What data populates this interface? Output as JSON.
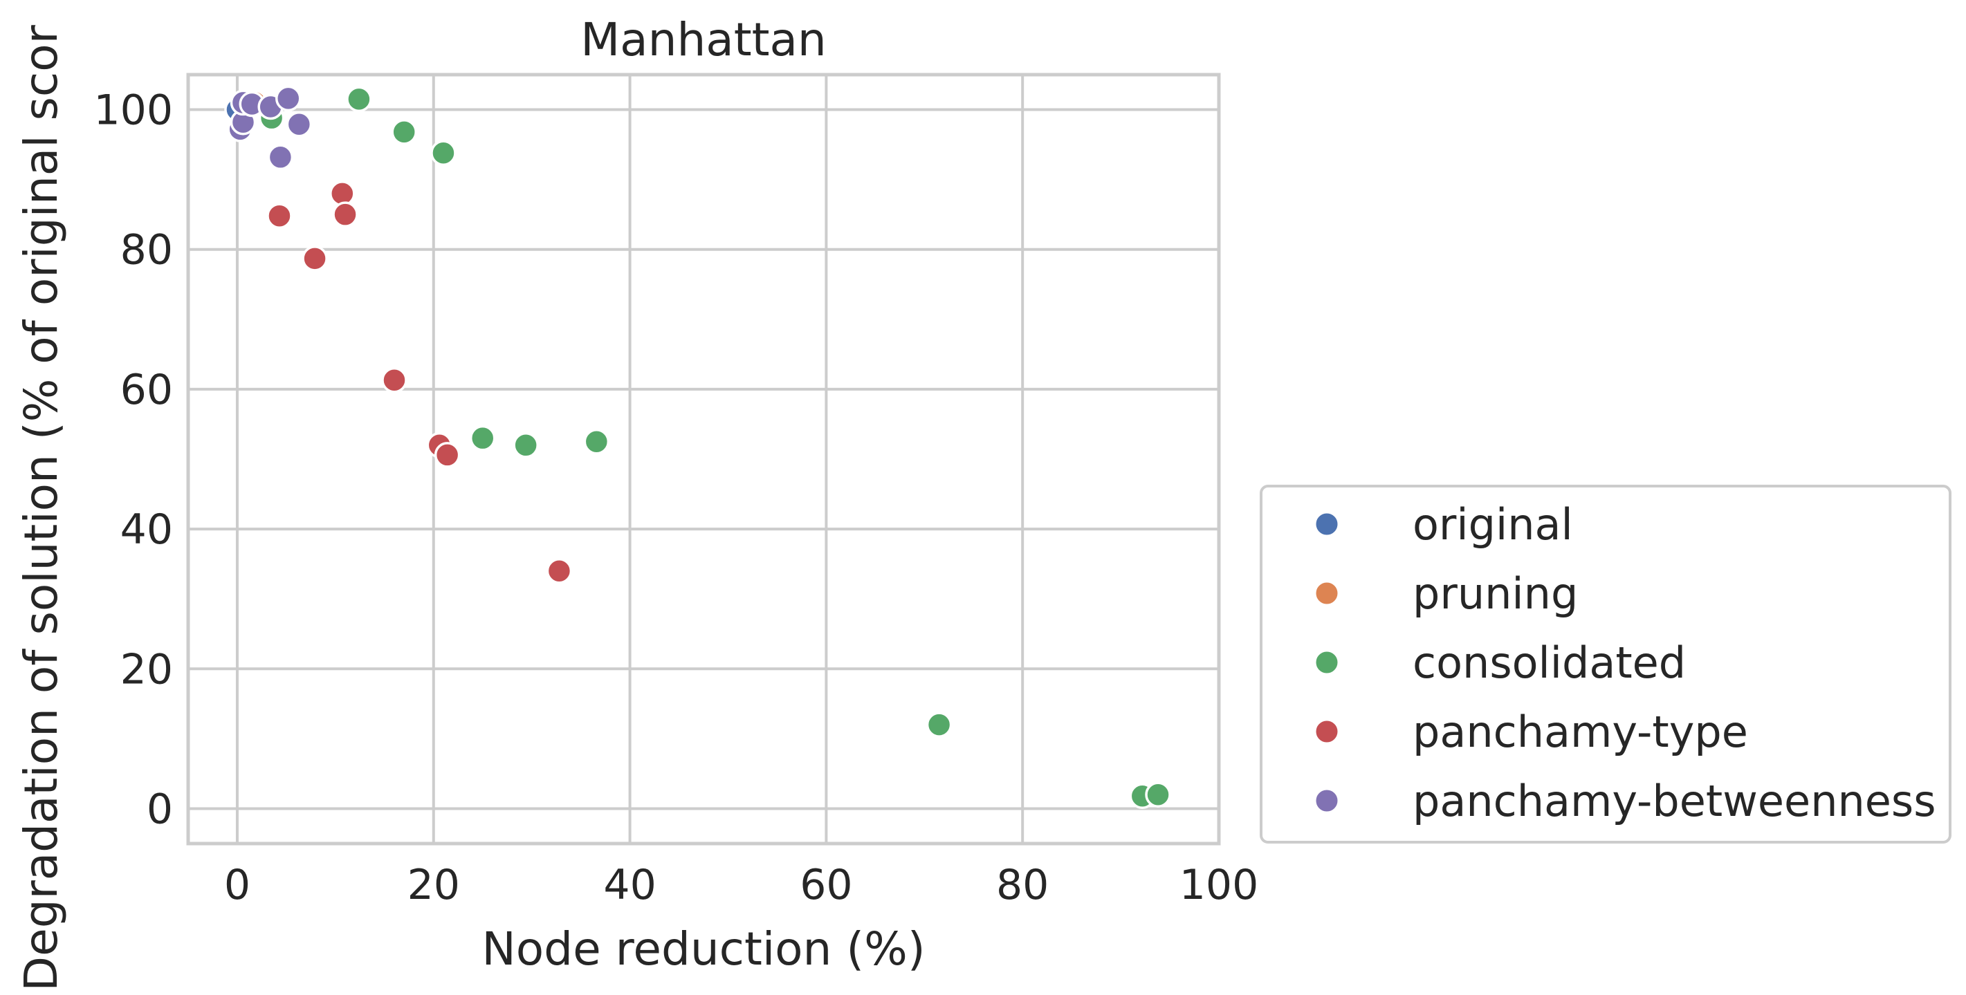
{
  "chart_data": {
    "type": "scatter",
    "title": "Manhattan",
    "xlabel": "Node reduction (%)",
    "ylabel": "Degradation of solution (% of original scor",
    "xlim": [
      -5,
      100
    ],
    "ylim": [
      -5,
      105
    ],
    "xticks": [
      "0",
      "20",
      "40",
      "60",
      "80",
      "100"
    ],
    "yticks": [
      "0",
      "20",
      "40",
      "60",
      "80",
      "100"
    ],
    "xtick_values": [
      0,
      20,
      40,
      60,
      80,
      100
    ],
    "ytick_values": [
      0,
      20,
      40,
      60,
      80,
      100
    ],
    "grid": true,
    "legend_position": "right, outside plot, lower",
    "series": [
      {
        "name": "original",
        "color": "#4c72b0",
        "points": [
          [
            0,
            100
          ]
        ]
      },
      {
        "name": "pruning",
        "color": "#dd8452",
        "points": [
          [
            1.8,
            101
          ]
        ]
      },
      {
        "name": "consolidated",
        "color": "#55a868",
        "points": [
          [
            3.5,
            98.8
          ],
          [
            12.4,
            101.5
          ],
          [
            17,
            96.8
          ],
          [
            21,
            93.8
          ],
          [
            25,
            53
          ],
          [
            29.4,
            52
          ],
          [
            36.6,
            52.5
          ],
          [
            71.5,
            12
          ],
          [
            92.2,
            1.8
          ],
          [
            93.8,
            2
          ]
        ]
      },
      {
        "name": "panchamy-type",
        "color": "#c44e52",
        "points": [
          [
            4.3,
            84.8
          ],
          [
            7.9,
            78.7
          ],
          [
            10.7,
            88
          ],
          [
            11,
            85
          ],
          [
            16,
            61.3
          ],
          [
            20.6,
            52
          ],
          [
            21.4,
            50.6
          ],
          [
            32.8,
            34
          ]
        ]
      },
      {
        "name": "panchamy-betweenness",
        "color": "#8172b3",
        "points": [
          [
            0.3,
            97.2
          ],
          [
            0.6,
            98.2
          ],
          [
            0.6,
            101
          ],
          [
            1.5,
            100.8
          ],
          [
            3.4,
            100.4
          ],
          [
            4.4,
            93.2
          ],
          [
            5.2,
            101.6
          ],
          [
            6.3,
            97.9
          ]
        ]
      }
    ]
  }
}
